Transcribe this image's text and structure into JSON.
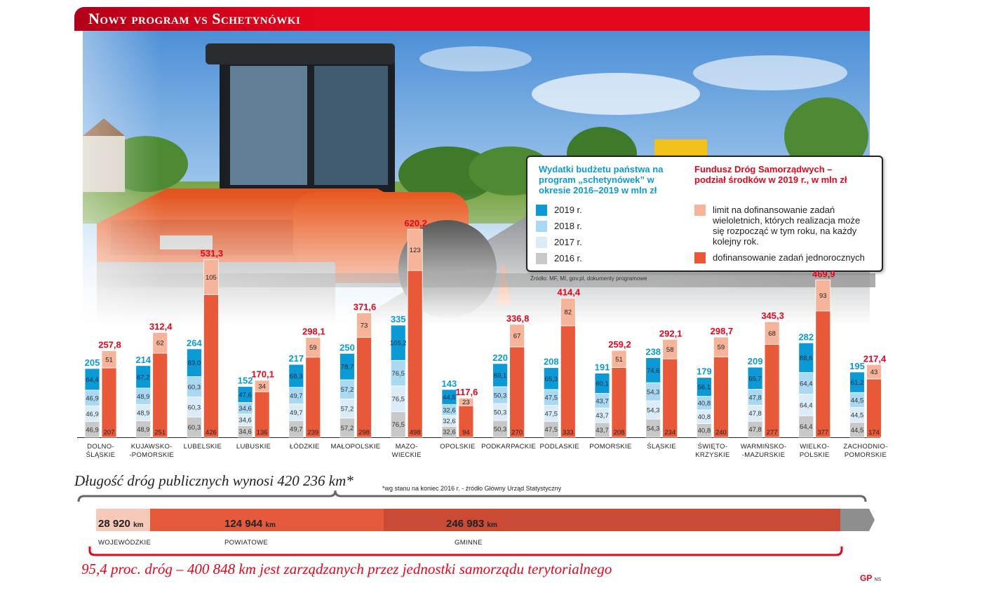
{
  "title": "Nowy program vs Schetynówki",
  "chart_data": {
    "type": "bar",
    "categories": [
      "DOLNO-ŚLĄSKIE",
      "KUJAWSKO--POMORSKIE",
      "LUBELSKIE",
      "LUBUSKIE",
      "ŁÓDZKIE",
      "MAŁOPOLSKIE",
      "MAZO-WIECKIE",
      "OPOLSKIE",
      "PODKARPACKIE",
      "PODLASKIE",
      "POMORSKIE",
      "ŚLĄSKIE",
      "ŚWIĘTO-KRZYSKIE",
      "WARMIŃSKO--MAZURSKIE",
      "WIELKO-POLSKIE",
      "ZACHODNIO-POMORSKIE"
    ],
    "left_series_title": "Wydatki budżetu państwa na program „schetynówek” w okresie 2016–2019 w mln zł",
    "left_series": [
      {
        "name": "2016 r.",
        "color": "#c8c8c8",
        "values": [
          "46,9",
          "48,9",
          "60,3",
          "34,6",
          "49,7",
          "57,2",
          "76,5",
          "32,6",
          "50,3",
          "47,5",
          "43,7",
          "54,3",
          "40,8",
          "47,8",
          "64,4",
          "44,5"
        ]
      },
      {
        "name": "2017 r.",
        "color": "#d9ecf7",
        "values": [
          "46,9",
          "48,9",
          "60,3",
          "34,6",
          "49,7",
          "57,2",
          "76,5",
          "32,6",
          "50,3",
          "47,5",
          "43,7",
          "54,3",
          "40,8",
          "47,8",
          "64,4",
          "44,5"
        ]
      },
      {
        "name": "2018 r.",
        "color": "#a8d8f2",
        "values": [
          "46,9",
          "48,9",
          "60,3",
          "34,6",
          "49,7",
          "57,2",
          "76,5",
          "32,6",
          "50,3",
          "47,5",
          "43,7",
          "54,3",
          "40,8",
          "47,8",
          "64,4",
          "44,5"
        ]
      },
      {
        "name": "2019 r.",
        "color": "#0c9ad6",
        "values": [
          "64,4",
          "67,2",
          "83,0",
          "47,6",
          "68,3",
          "78,7",
          "105,2",
          "44,8",
          "69,1",
          "65,3",
          "60,1",
          "74,6",
          "56,1",
          "65,7",
          "88,6",
          "61,2"
        ]
      }
    ],
    "left_totals": [
      "205",
      "214",
      "264",
      "152",
      "217",
      "250",
      "335",
      "143",
      "220",
      "208",
      "191",
      "238",
      "179",
      "209",
      "282",
      "195"
    ],
    "right_series_title": "Fundusz Dróg Samorządwych – podział środków w 2019 r., w mln zł",
    "right_series": [
      {
        "name": "dofinansowanie zadań jednorocznych",
        "color": "#e8593a",
        "values": [
          "207",
          "251",
          "426",
          "136",
          "239",
          "298",
          "498",
          "94",
          "270",
          "333",
          "208",
          "234",
          "240",
          "277",
          "377",
          "174"
        ]
      },
      {
        "name": "limit na dofinansowanie zadań wieloletnich, których realizacja może się rozpocząć w tym roku, na każdy kolejny rok.",
        "color": "#f6b49a",
        "values": [
          "51",
          "62",
          "105",
          "34",
          "59",
          "73",
          "123",
          "23",
          "67",
          "82",
          "51",
          "58",
          "59",
          "68",
          "93",
          "43"
        ]
      }
    ],
    "right_totals": [
      "257,8",
      "312,4",
      "531,3",
      "170,1",
      "298,1",
      "371,6",
      "620,2",
      "117,6",
      "336,8",
      "414,4",
      "259,2",
      "292,1",
      "298,7",
      "345,3",
      "469,9",
      "217,4"
    ],
    "source": "Źródło: MF, MI, gov.pl, dokumenty programowe"
  },
  "roads": {
    "title": "Długość dróg publicznych wynosi 420 236 km*",
    "note": "*wg stanu na koniec 2016 r. - źródło Główny Urząd Statystyczny",
    "segments": [
      {
        "value": "28 920",
        "unit": "km",
        "label": "WOJEWÓDZKIE",
        "color": "#f7c9b8",
        "km": 28920
      },
      {
        "value": "124 944",
        "unit": "km",
        "label": "POWIATOWE",
        "color": "#e55a3c",
        "km": 124944
      },
      {
        "value": "246 983",
        "unit": "km",
        "label": "GMINNE",
        "color": "#c94a35",
        "km": 246983
      },
      {
        "value": "",
        "unit": "",
        "label": "",
        "color": "#8e8e8e",
        "km": 19389
      }
    ],
    "bottom": "95,4 proc. dróg – 400 848 km jest zarządzanych przez jednostki samorządu terytorialnego"
  },
  "logo": {
    "mark": "GP",
    "initials": "NS"
  }
}
